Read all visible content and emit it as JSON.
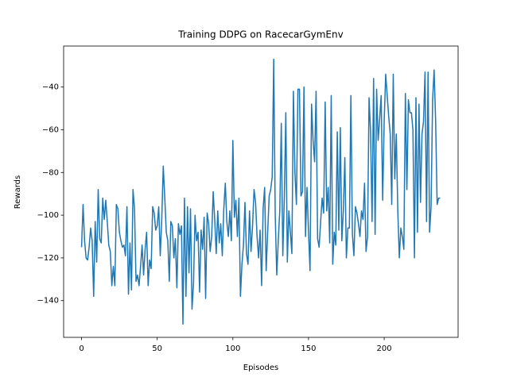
{
  "chart_data": {
    "type": "line",
    "title": "Training DDPG on RacecarGymEnv",
    "x_label": "Episodes",
    "y_label": "Rewards",
    "x": [
      0,
      1,
      2,
      3,
      4,
      5,
      6,
      7,
      8,
      9,
      10,
      11,
      12,
      13,
      14,
      15,
      16,
      17,
      18,
      19,
      20,
      21,
      22,
      23,
      24,
      25,
      26,
      27,
      28,
      29,
      30,
      31,
      32,
      33,
      34,
      35,
      36,
      37,
      38,
      39,
      40,
      41,
      42,
      43,
      44,
      45,
      46,
      47,
      48,
      49,
      50,
      51,
      52,
      53,
      54,
      55,
      56,
      57,
      58,
      59,
      60,
      61,
      62,
      63,
      64,
      65,
      66,
      67,
      68,
      69,
      70,
      71,
      72,
      73,
      74,
      75,
      76,
      77,
      78,
      79,
      80,
      81,
      82,
      83,
      84,
      85,
      86,
      87,
      88,
      89,
      90,
      91,
      92,
      93,
      94,
      95,
      96,
      97,
      98,
      99,
      100,
      101,
      102,
      103,
      104,
      105,
      106,
      107,
      108,
      109,
      110,
      111,
      112,
      113,
      114,
      115,
      116,
      117,
      118,
      119,
      120,
      121,
      122,
      123,
      124,
      125,
      126,
      127,
      128,
      129,
      130,
      131,
      132,
      133,
      134,
      135,
      136,
      137,
      138,
      139,
      140,
      141,
      142,
      143,
      144,
      145,
      146,
      147,
      148,
      149,
      150,
      151,
      152,
      153,
      154,
      155,
      156,
      157,
      158,
      159,
      160,
      161,
      162,
      163,
      164,
      165,
      166,
      167,
      168,
      169,
      170,
      171,
      172,
      173,
      174,
      175,
      176,
      177,
      178,
      179,
      180,
      181,
      182,
      183,
      184,
      185,
      186,
      187,
      188,
      189,
      190,
      191,
      192,
      193,
      194,
      195,
      196,
      197,
      198,
      199,
      200,
      201,
      202,
      203,
      204,
      205,
      206,
      207,
      208,
      209,
      210,
      211,
      212,
      213,
      214,
      215,
      216,
      217,
      218,
      219,
      220,
      221,
      222,
      223,
      224,
      225,
      226,
      227,
      228,
      229,
      230,
      231,
      232,
      233,
      234,
      235,
      236,
      237
    ],
    "series": [
      {
        "color": "#1f77b4",
        "values": [
          -115,
          -95,
          -112,
          -120,
          -121,
          -115,
          -106,
          -112,
          -138,
          -103,
          -122,
          -88,
          -111,
          -113,
          -92,
          -102,
          -93,
          -103,
          -114,
          -117,
          -133,
          -124,
          -133,
          -95,
          -97,
          -108,
          -112,
          -115,
          -114,
          -119,
          -96,
          -137,
          -113,
          -135,
          -88,
          -97,
          -131,
          -128,
          -133,
          -124,
          -114,
          -128,
          -116,
          -108,
          -133,
          -121,
          -125,
          -96,
          -99,
          -107,
          -105,
          -96,
          -119,
          -102,
          -77,
          -92,
          -108,
          -112,
          -131,
          -103,
          -105,
          -120,
          -111,
          -134,
          -104,
          -109,
          -105,
          -151,
          -92,
          -138,
          -96,
          -127,
          -97,
          -144,
          -132,
          -100,
          -112,
          -108,
          -136,
          -107,
          -116,
          -101,
          -139,
          -99,
          -104,
          -117,
          -110,
          -89,
          -102,
          -118,
          -98,
          -113,
          -104,
          -119,
          -97,
          -85,
          -103,
          -110,
          -98,
          -112,
          -65,
          -101,
          -93,
          -110,
          -92,
          -138,
          -123,
          -114,
          -94,
          -118,
          -123,
          -98,
          -117,
          -105,
          -88,
          -94,
          -110,
          -120,
          -107,
          -133,
          -97,
          -87,
          -126,
          -108,
          -91,
          -88,
          -82,
          -27,
          -100,
          -128,
          -112,
          -98,
          -57,
          -119,
          -92,
          -52,
          -122,
          -98,
          -108,
          -118,
          -42,
          -80,
          -95,
          -41,
          -41,
          -91,
          -89,
          -40,
          -110,
          -87,
          -108,
          -126,
          -48,
          -65,
          -75,
          -42,
          -111,
          -115,
          -103,
          -92,
          -99,
          -47,
          -98,
          -87,
          -113,
          -44,
          -123,
          -108,
          -114,
          -61,
          -107,
          -59,
          -112,
          -98,
          -73,
          -120,
          -106,
          -106,
          -44,
          -109,
          -119,
          -96,
          -99,
          -104,
          -110,
          -98,
          -102,
          -85,
          -117,
          -110,
          -45,
          -61,
          -103,
          -36,
          -109,
          -41,
          -65,
          -55,
          -44,
          -93,
          -56,
          -34,
          -44,
          -54,
          -62,
          -95,
          -34,
          -83,
          -62,
          -98,
          -120,
          -106,
          -110,
          -116,
          -43,
          -88,
          -46,
          -52,
          -52,
          -60,
          -120,
          -45,
          -108,
          -48,
          -94,
          -62,
          -56,
          -33,
          -103,
          -33,
          -108,
          -96,
          -46,
          -32,
          -56,
          -95,
          -92,
          -92
        ]
      }
    ],
    "xlim": [
      -11.85,
      248.85
    ],
    "ylim": [
      -157.2,
      -20.8
    ],
    "xticks": [
      0,
      50,
      100,
      150,
      200
    ],
    "yticks": [
      {
        "value": -140,
        "label": "−140"
      },
      {
        "value": -120,
        "label": "−120"
      },
      {
        "value": -100,
        "label": "−100"
      },
      {
        "value": -80,
        "label": "−80"
      },
      {
        "value": -60,
        "label": "−60"
      },
      {
        "value": -40,
        "label": "−40"
      }
    ]
  }
}
